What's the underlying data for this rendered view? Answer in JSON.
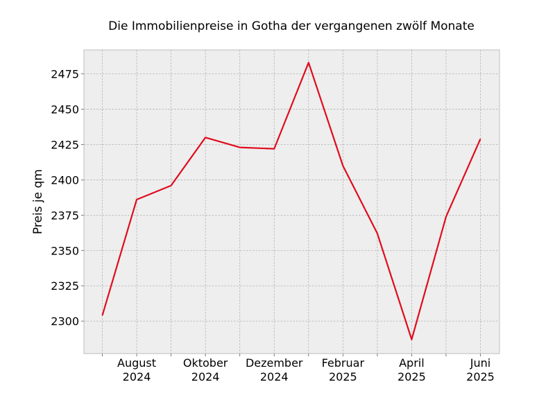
{
  "chart_data": {
    "type": "line",
    "title": "Die Immobilienpreise in Gotha der vergangenen zwölf Monate",
    "xlabel": "",
    "ylabel": "Preis je qm",
    "x": [
      "2024-07",
      "2024-08",
      "2024-09",
      "2024-10",
      "2024-11",
      "2024-12",
      "2025-01",
      "2025-02",
      "2025-03",
      "2025-04",
      "2025-05",
      "2025-06"
    ],
    "series": [
      {
        "color": "#e00b1c",
        "values": [
          2304,
          2386,
          2396,
          2430,
          2423,
          2422,
          2483,
          2410,
          2362,
          2287,
          2374,
          2429
        ]
      }
    ],
    "ylim": [
      2277,
      2492
    ],
    "yticks": [
      2300,
      2325,
      2350,
      2375,
      2400,
      2425,
      2450,
      2475
    ],
    "xtick_labels": [
      {
        "x": "2024-08",
        "line1": "August",
        "line2": "2024"
      },
      {
        "x": "2024-10",
        "line1": "Oktober",
        "line2": "2024"
      },
      {
        "x": "2024-12",
        "line1": "Dezember",
        "line2": "2024"
      },
      {
        "x": "2025-02",
        "line1": "Februar",
        "line2": "2025"
      },
      {
        "x": "2025-04",
        "line1": "April",
        "line2": "2025"
      },
      {
        "x": "2025-06",
        "line1": "Juni",
        "line2": "2025"
      }
    ],
    "grid": true,
    "background": "#eeeeee",
    "frame_color": "#bcbcbc"
  }
}
